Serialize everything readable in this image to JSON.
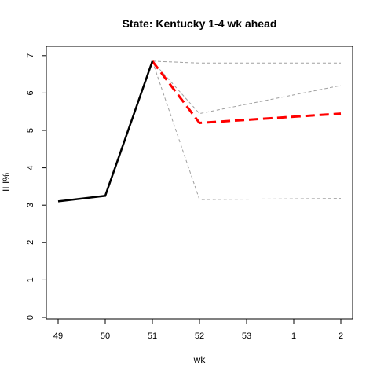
{
  "chart_data": {
    "type": "line",
    "title": "State: Kentucky 1-4 wk ahead",
    "xlabel": "wk",
    "ylabel": "ILI%",
    "categories": [
      "49",
      "50",
      "51",
      "52",
      "53",
      "1",
      "2"
    ],
    "ylim": [
      0,
      7
    ],
    "yticks": [
      0,
      1,
      2,
      3,
      4,
      5,
      6,
      7
    ],
    "grid": false,
    "series": [
      {
        "role": "observed",
        "color": "#000000",
        "style": "solid",
        "points": [
          [
            0,
            3.1
          ],
          [
            1,
            3.25
          ],
          [
            2,
            6.85
          ]
        ]
      },
      {
        "role": "forecast-point",
        "color": "#ff0000",
        "style": "dashed",
        "points": [
          [
            2,
            6.85
          ],
          [
            3,
            5.2
          ],
          [
            6,
            5.45
          ]
        ]
      },
      {
        "role": "interval",
        "color": "#a0a0a0",
        "style": "dashed",
        "points": [
          [
            2,
            6.85
          ],
          [
            3,
            6.8
          ],
          [
            6,
            6.8
          ]
        ]
      },
      {
        "role": "interval",
        "color": "#a0a0a0",
        "style": "dashed",
        "points": [
          [
            2,
            6.85
          ],
          [
            3,
            5.45
          ],
          [
            6,
            6.2
          ]
        ]
      },
      {
        "role": "interval",
        "color": "#a0a0a0",
        "style": "dashed",
        "points": [
          [
            2,
            6.85
          ],
          [
            3,
            3.15
          ],
          [
            6,
            3.18
          ]
        ]
      }
    ]
  }
}
